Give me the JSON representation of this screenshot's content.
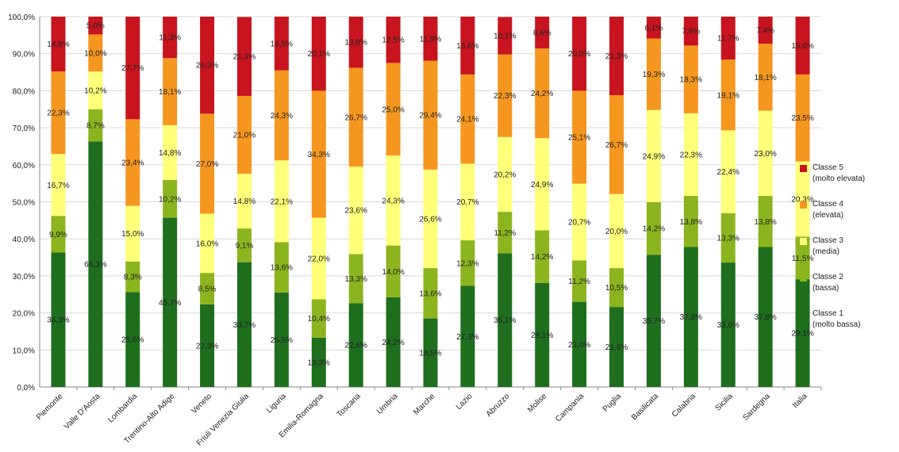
{
  "chart_data": {
    "type": "bar",
    "stacked": true,
    "title": "",
    "xlabel": "",
    "ylabel": "",
    "ylim": [
      0,
      100
    ],
    "yticks": [
      "0,0%",
      "10,0%",
      "20,0%",
      "30,0%",
      "40,0%",
      "50,0%",
      "60,0%",
      "70,0%",
      "80,0%",
      "90,0%",
      "100,0%"
    ],
    "grid": true,
    "legend_position": "right",
    "categories": [
      "Piemonte",
      "Valle D'Aosta",
      "Lombardia",
      "Trentino-Alto Adige",
      "Veneto",
      "Friuli Venezia Giulia",
      "Liguria",
      "Emilia-Romagna",
      "Toscana",
      "Umbria",
      "Marche",
      "Lazio",
      "Abruzzo",
      "Molise",
      "Campania",
      "Puglia",
      "Basilicata",
      "Calabria",
      "Sicilia",
      "Sardegna",
      "Italia"
    ],
    "series": [
      {
        "name": "Classe 1\n(molto bassa)",
        "color": "#1e6e1e",
        "values": [
          36.3,
          66.3,
          25.6,
          45.7,
          22.3,
          33.7,
          25.5,
          13.3,
          22.6,
          24.2,
          18.5,
          27.3,
          36.1,
          28.1,
          23.0,
          21.6,
          35.7,
          37.8,
          33.6,
          37.8,
          29.1
        ],
        "labels": [
          "36,3%",
          "66,3%",
          "25,6%",
          "45,7%",
          "22,3%",
          "33,7%",
          "25,5%",
          "13,3%",
          "22,6%",
          "24,2%",
          "18,5%",
          "27,3%",
          "36,1%",
          "28,1%",
          "23,0%",
          "21,6%",
          "35,7%",
          "37,8%",
          "33,6%",
          "37,8%",
          "29,1%"
        ]
      },
      {
        "name": "Classe 2\n(bassa)",
        "color": "#8cb41e",
        "values": [
          9.9,
          8.7,
          8.3,
          10.2,
          8.5,
          9.1,
          13.6,
          10.4,
          13.3,
          14.0,
          13.6,
          12.3,
          11.2,
          14.2,
          11.2,
          10.5,
          14.2,
          13.8,
          13.3,
          13.8,
          11.5
        ],
        "labels": [
          "9,9%",
          "8,7%",
          "8,3%",
          "10,2%",
          "8,5%",
          "9,1%",
          "13,6%",
          "10,4%",
          "13,3%",
          "14,0%",
          "13,6%",
          "12,3%",
          "11,2%",
          "14,2%",
          "11,2%",
          "10,5%",
          "14,2%",
          "13,8%",
          "13,3%",
          "13,8%",
          "11,5%"
        ]
      },
      {
        "name": "Classe 3\n(media)",
        "color": "#ffff7a",
        "values": [
          16.7,
          10.2,
          15.0,
          14.8,
          16.0,
          14.8,
          22.1,
          22.0,
          23.6,
          24.3,
          26.6,
          20.7,
          20.2,
          24.9,
          20.7,
          20.0,
          24.9,
          22.3,
          22.4,
          23.0,
          20.3
        ],
        "labels": [
          "16,7%",
          "10,2%",
          "15,0%",
          "14,8%",
          "16,0%",
          "14,8%",
          "22,1%",
          "22,0%",
          "23,6%",
          "24,3%",
          "26,6%",
          "20,7%",
          "20,2%",
          "24,9%",
          "20,7%",
          "20,0%",
          "24,9%",
          "22,3%",
          "22,4%",
          "23,0%",
          "20,3%"
        ]
      },
      {
        "name": "Classe 4\n(elevata)",
        "color": "#f5961e",
        "values": [
          22.3,
          10.0,
          23.4,
          18.1,
          27.0,
          21.0,
          24.3,
          34.3,
          26.7,
          25.0,
          29.4,
          24.1,
          22.3,
          24.2,
          25.1,
          26.7,
          19.3,
          18.3,
          19.1,
          18.1,
          23.5
        ],
        "labels": [
          "22,3%",
          "10,0%",
          "23,4%",
          "18,1%",
          "27,0%",
          "21,0%",
          "24,3%",
          "34,3%",
          "26,7%",
          "25,0%",
          "29,4%",
          "24,1%",
          "22,3%",
          "24,2%",
          "25,1%",
          "26,7%",
          "19,3%",
          "18,3%",
          "19,1%",
          "18,1%",
          "23,5%"
        ]
      },
      {
        "name": "Classe 5\n(molto elevata)",
        "color": "#c8141e",
        "values": [
          14.8,
          5.0,
          27.7,
          11.3,
          26.3,
          21.3,
          14.5,
          20.1,
          13.8,
          12.5,
          11.9,
          15.6,
          10.1,
          8.6,
          20.0,
          21.3,
          6.1,
          7.8,
          11.7,
          7.4,
          15.6
        ],
        "labels": [
          "14,8%",
          "5,0%",
          "27,7%",
          "11,3%",
          "26,3%",
          "21,3%",
          "14,5%",
          "20,1%",
          "13,8%",
          "12,5%",
          "11,9%",
          "15,6%",
          "10,1%",
          "8,6%",
          "20,0%",
          "21,3%",
          "6,1%",
          "7,8%",
          "11,7%",
          "7,4%",
          "15,6%"
        ]
      }
    ]
  }
}
